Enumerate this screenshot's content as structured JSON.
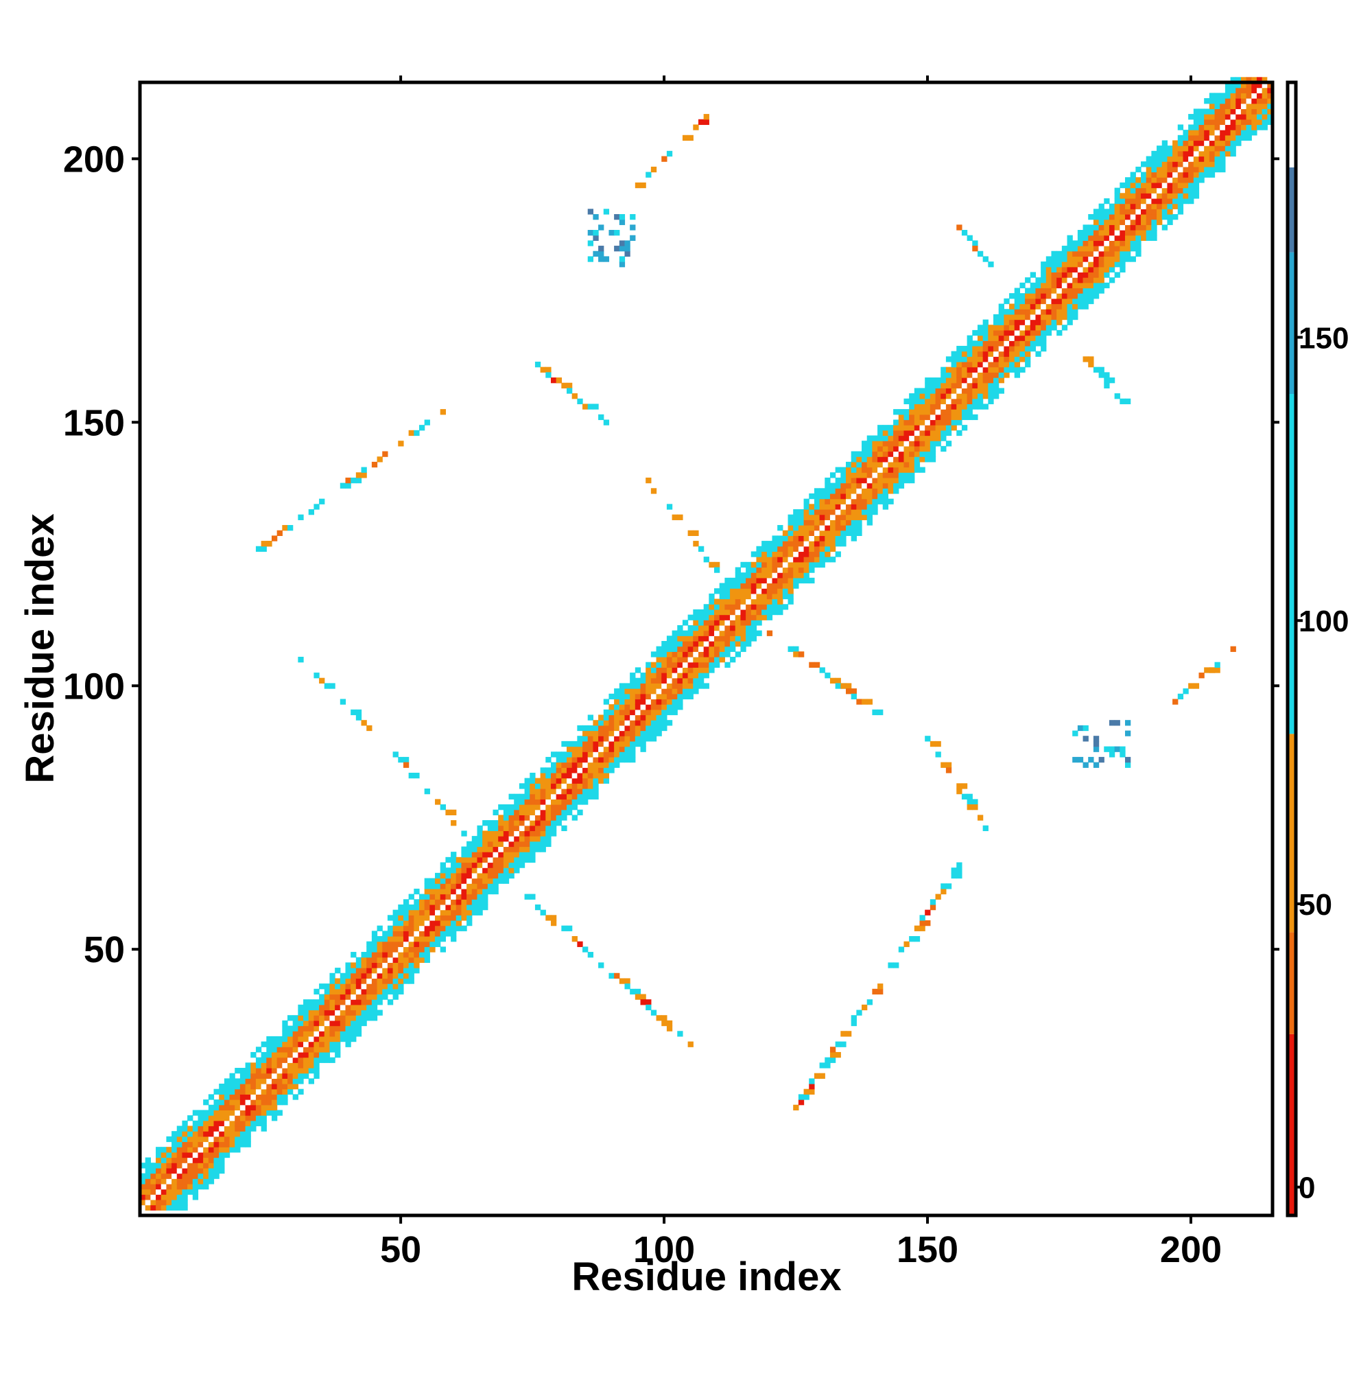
{
  "chart_data": {
    "type": "heatmap",
    "title": "",
    "xlabel": "Residue index",
    "ylabel": "Residue index",
    "xlim": [
      1,
      215
    ],
    "ylim": [
      1,
      215
    ],
    "xticks": [
      50,
      100,
      150,
      200
    ],
    "yticks": [
      50,
      100,
      150,
      200
    ],
    "grid": false,
    "legend": "colorbar right",
    "colorbar": {
      "range": [
        -5,
        195
      ],
      "ticks": [
        0,
        50,
        100,
        150
      ],
      "bands": [
        {
          "from": -5,
          "to": 27,
          "color": "#e8190c"
        },
        {
          "from": 27,
          "to": 45,
          "color": "#ee6d12"
        },
        {
          "from": 45,
          "to": 80,
          "color": "#f09410"
        },
        {
          "from": 80,
          "to": 140,
          "color": "#1ed8e8"
        },
        {
          "from": 140,
          "to": 165,
          "color": "#2aa7d0"
        },
        {
          "from": 165,
          "to": 180,
          "color": "#4a7aa8"
        },
        {
          "from": 180,
          "to": 195,
          "color": "#ffffff"
        }
      ]
    },
    "structure": {
      "diagonal_band": {
        "from": 1,
        "to": 215,
        "half_width": 8
      },
      "contact_lines": [
        {
          "x": [
            22,
            58
          ],
          "y": [
            125,
            152
          ]
        },
        {
          "x": [
            30,
            48
          ],
          "y": [
            106,
            88
          ]
        },
        {
          "x": [
            48,
            62
          ],
          "y": [
            88,
            72
          ]
        },
        {
          "x": [
            74,
            107
          ],
          "y": [
            60,
            30
          ]
        },
        {
          "x": [
            125,
            150
          ],
          "y": [
            20,
            57
          ]
        },
        {
          "x": [
            150,
            156
          ],
          "y": [
            57,
            66
          ]
        },
        {
          "x": [
            96,
            110
          ],
          "y": [
            140,
            122
          ]
        },
        {
          "x": [
            120,
            140
          ],
          "y": [
            110,
            95
          ]
        },
        {
          "x": [
            150,
            161
          ],
          "y": [
            90,
            73
          ]
        },
        {
          "x": [
            76,
            89
          ],
          "y": [
            161,
            150
          ]
        },
        {
          "x": [
            95,
            108
          ],
          "y": [
            195,
            208
          ]
        },
        {
          "x": [
            196,
            210
          ],
          "y": [
            96,
            109
          ]
        },
        {
          "x": [
            155,
            162
          ],
          "y": [
            188,
            180
          ]
        },
        {
          "x": [
            180,
            187
          ],
          "y": [
            162,
            154
          ]
        }
      ],
      "clusters": [
        {
          "x": [
            86,
            94
          ],
          "y": [
            180,
            190
          ]
        },
        {
          "x": [
            178,
            188
          ],
          "y": [
            85,
            93
          ]
        }
      ]
    }
  }
}
